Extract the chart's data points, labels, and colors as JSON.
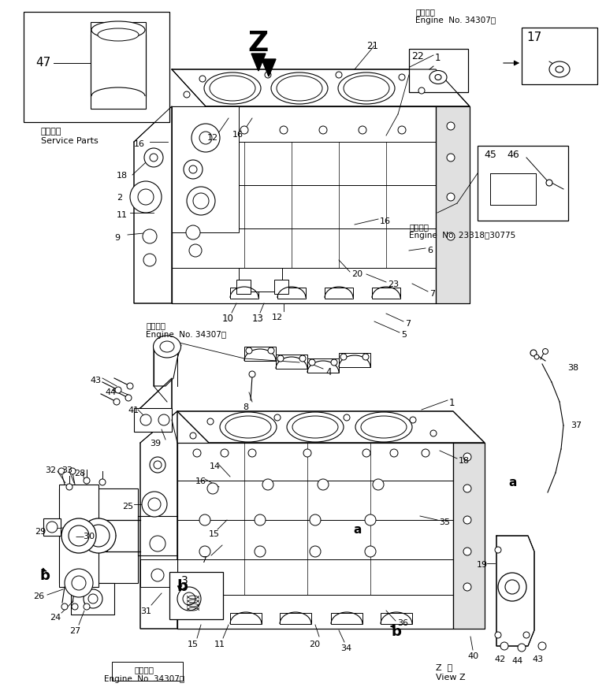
{
  "bg_color": "#ffffff",
  "line_color": "#000000",
  "fig_width": 7.69,
  "fig_height": 8.72,
  "dpi": 100,
  "texts": {
    "top_right_1": "適用号機",
    "top_right_2": "Engine  No. 34307～",
    "mid_right_1": "適用号機",
    "mid_right_2": "Engine  No. 23318～30775",
    "bot_left_1": "適用号機",
    "bot_left_2": "Engine  No. 34307～",
    "service_jp": "補給専用",
    "service_en": "Service Parts",
    "Z_label": "Z",
    "view_z_1": "Z  視",
    "view_z_2": "View Z"
  }
}
